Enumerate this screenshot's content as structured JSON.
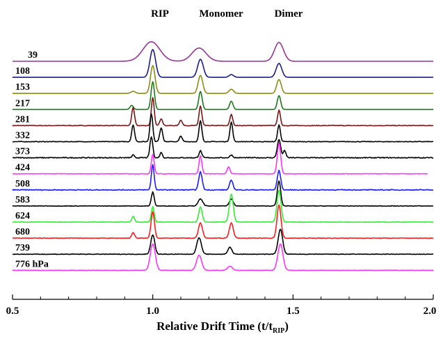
{
  "chart_data": {
    "type": "line",
    "title": "",
    "xlabel": "Relative Drift Time (t/t",
    "xlabel_sub": "RIP",
    "xlabel_close": ")",
    "xlim": [
      0.5,
      2.0
    ],
    "x_ticks": [
      "0.5",
      "1.0",
      "1.5",
      "2.0"
    ],
    "peak_labels": [
      "RIP",
      "Monomer",
      "Dimer"
    ],
    "peak_positions": [
      1.0,
      1.17,
      1.45
    ],
    "y_axis": "stacked offset spectra (no scale shown)",
    "series": [
      {
        "name": "39",
        "color": "#993399",
        "x_end": 2.0,
        "noise": 0.0,
        "peaks": [
          [
            0.995,
            0.03,
            28
          ],
          [
            1.165,
            0.025,
            19
          ],
          [
            1.45,
            0.016,
            27
          ]
        ]
      },
      {
        "name": "108",
        "color": "#1a1a8c",
        "x_end": 2.0,
        "noise": 0.0,
        "peaks": [
          [
            1.0,
            0.01,
            40
          ],
          [
            1.17,
            0.01,
            26
          ],
          [
            1.28,
            0.008,
            4
          ],
          [
            1.45,
            0.01,
            20
          ]
        ]
      },
      {
        "name": "153",
        "color": "#8c8c14",
        "x_end": 2.0,
        "noise": 0.0,
        "peaks": [
          [
            0.93,
            0.008,
            3
          ],
          [
            1.0,
            0.008,
            40
          ],
          [
            1.17,
            0.008,
            26
          ],
          [
            1.28,
            0.008,
            6
          ],
          [
            1.45,
            0.008,
            20
          ]
        ]
      },
      {
        "name": "217",
        "color": "#1a7a1a",
        "x_end": 2.0,
        "noise": 0.0,
        "peaks": [
          [
            0.925,
            0.006,
            6
          ],
          [
            1.0,
            0.006,
            40
          ],
          [
            1.17,
            0.006,
            26
          ],
          [
            1.28,
            0.006,
            12
          ],
          [
            1.45,
            0.006,
            20
          ]
        ]
      },
      {
        "name": "281",
        "color": "#7a1414",
        "x_end": 2.0,
        "noise": 0.8,
        "peaks": [
          [
            0.93,
            0.005,
            26
          ],
          [
            1.0,
            0.005,
            40
          ],
          [
            1.03,
            0.005,
            10
          ],
          [
            1.1,
            0.005,
            8
          ],
          [
            1.17,
            0.005,
            28
          ],
          [
            1.28,
            0.005,
            16
          ],
          [
            1.45,
            0.005,
            22
          ]
        ]
      },
      {
        "name": "332",
        "color": "#000000",
        "x_end": 2.0,
        "noise": 0.8,
        "peaks": [
          [
            0.93,
            0.005,
            24
          ],
          [
            0.995,
            0.005,
            40
          ],
          [
            1.03,
            0.005,
            20
          ],
          [
            1.1,
            0.005,
            8
          ],
          [
            1.17,
            0.005,
            30
          ],
          [
            1.28,
            0.005,
            28
          ],
          [
            1.45,
            0.005,
            24
          ]
        ]
      },
      {
        "name": "373",
        "color": "#000000",
        "x_end": 2.0,
        "noise": 1.2,
        "peaks": [
          [
            0.93,
            0.004,
            4
          ],
          [
            0.995,
            0.005,
            30
          ],
          [
            1.03,
            0.004,
            8
          ],
          [
            1.17,
            0.005,
            10
          ],
          [
            1.28,
            0.005,
            4
          ],
          [
            1.45,
            0.006,
            26
          ],
          [
            1.47,
            0.005,
            10
          ]
        ]
      },
      {
        "name": "424",
        "color": "#ff33ff",
        "x_end": 1.98,
        "noise": 0.6,
        "peaks": [
          [
            1.0,
            0.005,
            28
          ],
          [
            1.17,
            0.005,
            26
          ],
          [
            1.27,
            0.005,
            10
          ],
          [
            1.45,
            0.006,
            44
          ]
        ]
      },
      {
        "name": "508",
        "color": "#1a1aff",
        "x_end": 2.0,
        "noise": 1.2,
        "peaks": [
          [
            1.0,
            0.005,
            36
          ],
          [
            1.17,
            0.006,
            26
          ],
          [
            1.28,
            0.006,
            14
          ],
          [
            1.45,
            0.006,
            28
          ]
        ]
      },
      {
        "name": "583",
        "color": "#000000",
        "x_end": 2.0,
        "noise": 0.8,
        "peaks": [
          [
            1.0,
            0.005,
            20
          ],
          [
            1.17,
            0.008,
            10
          ],
          [
            1.28,
            0.007,
            10
          ],
          [
            1.45,
            0.006,
            36
          ]
        ]
      },
      {
        "name": "624",
        "color": "#33ee33",
        "x_end": 2.0,
        "noise": 0.8,
        "peaks": [
          [
            0.93,
            0.005,
            8
          ],
          [
            1.0,
            0.005,
            22
          ],
          [
            1.17,
            0.006,
            22
          ],
          [
            1.28,
            0.007,
            40
          ],
          [
            1.45,
            0.007,
            46
          ]
        ]
      },
      {
        "name": "680",
        "color": "#ff1a1a",
        "x_end": 2.0,
        "noise": 0.8,
        "peaks": [
          [
            0.93,
            0.005,
            8
          ],
          [
            1.0,
            0.006,
            38
          ],
          [
            1.17,
            0.007,
            22
          ],
          [
            1.28,
            0.007,
            22
          ],
          [
            1.45,
            0.007,
            48
          ]
        ]
      },
      {
        "name": "739",
        "color": "#000000",
        "x_end": 2.0,
        "noise": 0.8,
        "peaks": [
          [
            1.0,
            0.007,
            28
          ],
          [
            1.165,
            0.008,
            24
          ],
          [
            1.275,
            0.007,
            10
          ],
          [
            1.455,
            0.008,
            36
          ]
        ]
      },
      {
        "name": "776 hPa",
        "color": "#ff33ff",
        "x_end": 2.0,
        "noise": 0.6,
        "peaks": [
          [
            1.0,
            0.009,
            38
          ],
          [
            1.165,
            0.009,
            22
          ],
          [
            1.275,
            0.008,
            6
          ],
          [
            1.455,
            0.009,
            38
          ]
        ]
      }
    ],
    "grid": false,
    "legend": "none"
  }
}
